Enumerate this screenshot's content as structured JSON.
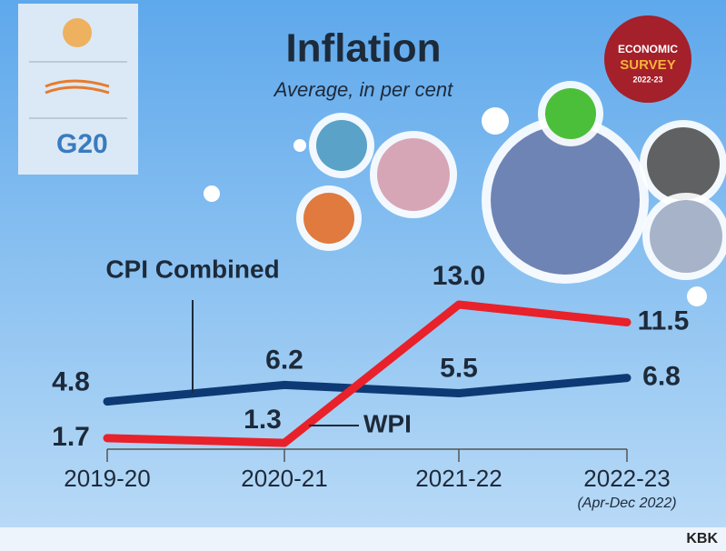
{
  "chart_data": {
    "type": "line",
    "title": "Inflation",
    "subtitle": "Average, in per cent",
    "categories": [
      "2019-20",
      "2020-21",
      "2021-22",
      "2022-23"
    ],
    "category_notes": [
      null,
      null,
      null,
      "(Apr-Dec 2022)"
    ],
    "series": [
      {
        "name": "CPI Combined",
        "color": "#0d3a74",
        "values": [
          4.8,
          6.2,
          5.5,
          6.8
        ],
        "value_labels": [
          "4.8",
          "6.2",
          "5.5",
          "6.8"
        ]
      },
      {
        "name": "WPI",
        "color": "#e8212b",
        "values": [
          1.7,
          1.3,
          13.0,
          11.5
        ],
        "value_labels": [
          "1.7",
          "1.3",
          "13.0",
          "11.5"
        ]
      }
    ]
  },
  "badge": {
    "lines": [
      "ECONOMIC",
      "SURVEY",
      "2022-23"
    ]
  },
  "logos": {
    "g20": "G20"
  },
  "footer": {
    "credit": "KBK"
  }
}
